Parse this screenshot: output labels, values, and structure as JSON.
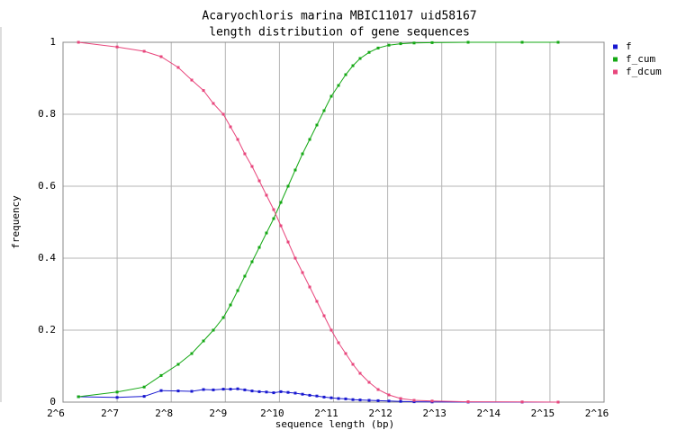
{
  "chart_data": {
    "type": "line",
    "title": "Acaryochloris marina MBIC11017 uid58167",
    "subtitle": "length distribution of gene sequences",
    "x_label": "sequence length (bp)",
    "y_label": "frequency",
    "log_x": true,
    "log_base": 2,
    "grid": true,
    "legend": "right",
    "xlim": [
      64,
      65536
    ],
    "xticks": [
      {
        "value": 64,
        "label": "2^6"
      },
      {
        "value": 128,
        "label": "2^7"
      },
      {
        "value": 256,
        "label": "2^8"
      },
      {
        "value": 512,
        "label": "2^9"
      },
      {
        "value": 1024,
        "label": "2^10"
      },
      {
        "value": 2048,
        "label": "2^11"
      },
      {
        "value": 4096,
        "label": "2^12"
      },
      {
        "value": 8192,
        "label": "2^13"
      },
      {
        "value": 16384,
        "label": "2^14"
      },
      {
        "value": 32768,
        "label": "2^15"
      },
      {
        "value": 65536,
        "label": "2^16"
      }
    ],
    "ylim": [
      0,
      1
    ],
    "yticks": [
      0,
      0.2,
      0.4,
      0.6,
      0.8,
      1
    ],
    "x": [
      78,
      128,
      181,
      225,
      280,
      333,
      387,
      439,
      499,
      547,
      600,
      657,
      721,
      791,
      867,
      951,
      1043,
      1144,
      1254,
      1376,
      1509,
      1654,
      1814,
      1990,
      2182,
      2393,
      2625,
      2878,
      3230,
      3625,
      4162,
      4837,
      5748,
      7242,
      11488,
      22950,
      36384
    ],
    "series": [
      {
        "name": "f",
        "color": "#1818d0",
        "values": [
          0.015,
          0.013,
          0.016,
          0.032,
          0.031,
          0.03,
          0.035,
          0.034,
          0.036,
          0.036,
          0.037,
          0.034,
          0.031,
          0.029,
          0.028,
          0.026,
          0.029,
          0.027,
          0.025,
          0.022,
          0.019,
          0.017,
          0.014,
          0.012,
          0.01,
          0.009,
          0.007,
          0.006,
          0.005,
          0.004,
          0.003,
          0.002,
          0.001,
          0.0005,
          0.0002,
          0.0001,
          0
        ]
      },
      {
        "name": "f_cum",
        "color": "#14a814",
        "values": [
          0.015,
          0.028,
          0.042,
          0.074,
          0.105,
          0.135,
          0.17,
          0.2,
          0.235,
          0.27,
          0.31,
          0.35,
          0.39,
          0.43,
          0.47,
          0.51,
          0.555,
          0.6,
          0.645,
          0.69,
          0.73,
          0.77,
          0.81,
          0.85,
          0.88,
          0.91,
          0.935,
          0.955,
          0.972,
          0.984,
          0.992,
          0.996,
          0.998,
          0.999,
          1,
          1,
          1
        ]
      },
      {
        "name": "f_dcum",
        "color": "#e8467c",
        "values": [
          1,
          0.987,
          0.975,
          0.96,
          0.93,
          0.895,
          0.866,
          0.83,
          0.8,
          0.765,
          0.73,
          0.69,
          0.655,
          0.615,
          0.575,
          0.535,
          0.49,
          0.445,
          0.4,
          0.36,
          0.32,
          0.28,
          0.24,
          0.2,
          0.165,
          0.135,
          0.105,
          0.08,
          0.055,
          0.035,
          0.02,
          0.01,
          0.005,
          0.003,
          0.001,
          0.0005,
          0
        ]
      }
    ]
  }
}
